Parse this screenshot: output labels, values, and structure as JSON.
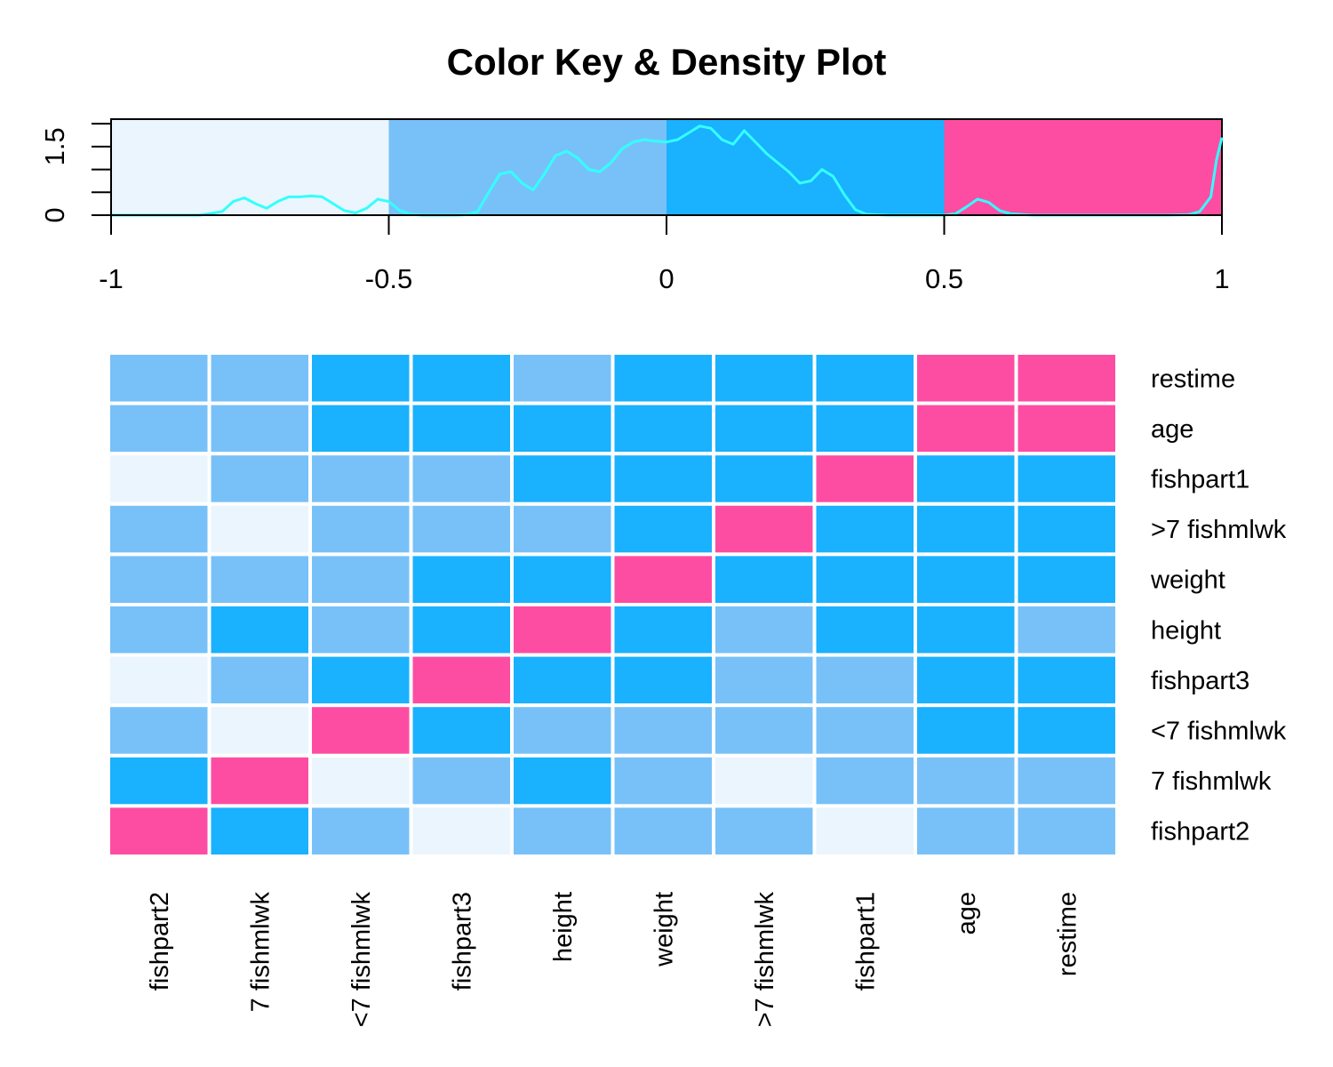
{
  "chart_data": [
    {
      "type": "area",
      "title": "Color Key & Density Plot",
      "xlabel": "",
      "ylabel": "",
      "xlim": [
        -1,
        1
      ],
      "ylim": [
        0,
        2.1
      ],
      "x_ticks": [
        "-1",
        "-0.5",
        "0",
        "0.5",
        "1"
      ],
      "y_ticks": [
        "0",
        "1.5"
      ],
      "color_bins": [
        {
          "from": -1.0,
          "to": -0.5,
          "color": "#ebf5fe"
        },
        {
          "from": -0.5,
          "to": 0.0,
          "color": "#78c1f8"
        },
        {
          "from": 0.0,
          "to": 0.5,
          "color": "#1ab1fe"
        },
        {
          "from": 0.5,
          "to": 1.0,
          "color": "#fd4da3"
        }
      ],
      "density_color": "#33ffff",
      "density": {
        "x": [
          -1.0,
          -0.84,
          -0.8,
          -0.78,
          -0.76,
          -0.74,
          -0.72,
          -0.7,
          -0.68,
          -0.66,
          -0.64,
          -0.62,
          -0.6,
          -0.58,
          -0.56,
          -0.54,
          -0.52,
          -0.5,
          -0.48,
          -0.46,
          -0.44,
          -0.42,
          -0.4,
          -0.38,
          -0.36,
          -0.34,
          -0.32,
          -0.3,
          -0.28,
          -0.26,
          -0.24,
          -0.22,
          -0.2,
          -0.18,
          -0.16,
          -0.14,
          -0.12,
          -0.1,
          -0.08,
          -0.06,
          -0.04,
          -0.02,
          0.0,
          0.02,
          0.04,
          0.06,
          0.08,
          0.1,
          0.12,
          0.14,
          0.16,
          0.18,
          0.2,
          0.22,
          0.24,
          0.26,
          0.28,
          0.3,
          0.32,
          0.34,
          0.36,
          0.4,
          0.45,
          0.5,
          0.52,
          0.54,
          0.56,
          0.58,
          0.6,
          0.62,
          0.66,
          0.7,
          0.8,
          0.9,
          0.94,
          0.96,
          0.98,
          0.99,
          1.0
        ],
        "y": [
          0.0,
          0.0,
          0.08,
          0.3,
          0.38,
          0.25,
          0.15,
          0.3,
          0.4,
          0.4,
          0.42,
          0.4,
          0.25,
          0.1,
          0.05,
          0.15,
          0.35,
          0.3,
          0.1,
          0.02,
          0.0,
          0.0,
          0.0,
          0.0,
          0.01,
          0.08,
          0.5,
          0.9,
          0.95,
          0.7,
          0.55,
          0.9,
          1.3,
          1.4,
          1.25,
          1.0,
          0.95,
          1.15,
          1.45,
          1.6,
          1.65,
          1.62,
          1.6,
          1.65,
          1.8,
          1.95,
          1.9,
          1.65,
          1.55,
          1.85,
          1.6,
          1.35,
          1.15,
          0.95,
          0.7,
          0.75,
          1.0,
          0.85,
          0.45,
          0.12,
          0.02,
          0.0,
          0.0,
          0.0,
          0.03,
          0.18,
          0.35,
          0.28,
          0.1,
          0.03,
          0.0,
          0.0,
          0.0,
          0.0,
          0.01,
          0.08,
          0.4,
          1.2,
          1.7
        ]
      }
    },
    {
      "type": "heatmap",
      "row_labels": [
        "restime",
        "age",
        "fishpart1",
        ">7 fishmlwk",
        "weight",
        "height",
        "fishpart3",
        "<7 fishmlwk",
        "7 fishmlwk",
        "fishpart2"
      ],
      "col_labels": [
        "fishpart2",
        "7 fishmlwk",
        "<7 fishmlwk",
        "fishpart3",
        "height",
        "weight",
        ">7 fishmlwk",
        "fishpart1",
        "age",
        "restime"
      ],
      "color_scale": [
        "#ebf5fe",
        "#78c1f8",
        "#1ab1fe",
        "#fd4da3"
      ],
      "value_bins": [
        "-1 to -0.5",
        "-0.5 to 0",
        "0 to 0.5",
        "0.5 to 1"
      ],
      "cells": [
        [
          1,
          1,
          2,
          2,
          1,
          2,
          2,
          2,
          3,
          3
        ],
        [
          1,
          1,
          2,
          2,
          2,
          2,
          2,
          2,
          3,
          3
        ],
        [
          0,
          1,
          1,
          1,
          2,
          2,
          2,
          3,
          2,
          2
        ],
        [
          1,
          0,
          1,
          1,
          1,
          2,
          3,
          2,
          2,
          2
        ],
        [
          1,
          1,
          1,
          2,
          2,
          3,
          2,
          2,
          2,
          2
        ],
        [
          1,
          2,
          1,
          2,
          3,
          2,
          1,
          2,
          2,
          1
        ],
        [
          0,
          1,
          2,
          3,
          2,
          2,
          1,
          1,
          2,
          2
        ],
        [
          1,
          0,
          3,
          2,
          1,
          1,
          1,
          1,
          2,
          2
        ],
        [
          2,
          3,
          0,
          1,
          2,
          1,
          0,
          1,
          1,
          1
        ],
        [
          3,
          2,
          1,
          0,
          1,
          1,
          1,
          0,
          1,
          1
        ]
      ]
    }
  ]
}
